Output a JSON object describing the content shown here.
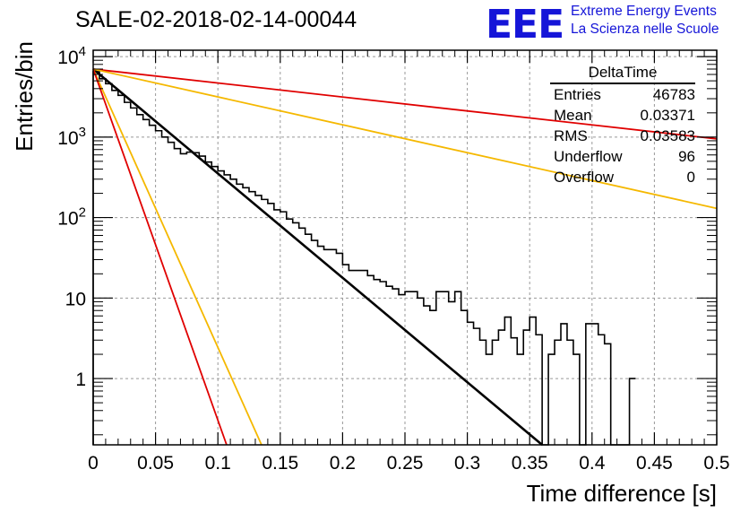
{
  "title": "SALE-02-2018-02-14-00044",
  "logo": {
    "mark": "EEE",
    "line1": "Extreme Energy Events",
    "line2": "La Scienza nelle Scuole",
    "color": "#1515d8"
  },
  "stats": {
    "name": "DeltaTime",
    "rows": [
      {
        "label": "Entries",
        "value": "46783"
      },
      {
        "label": "Mean",
        "value": "0.03371"
      },
      {
        "label": "RMS",
        "value": "0.03583"
      },
      {
        "label": "Underflow",
        "value": "96"
      },
      {
        "label": "Overflow",
        "value": "0"
      }
    ]
  },
  "chart_data": {
    "type": "line",
    "title": "SALE-02-2018-02-14-00044",
    "xlabel": "Time difference [s]",
    "ylabel": "Entries/bin",
    "xlim": [
      0,
      0.5
    ],
    "ylim": [
      0.15,
      12000
    ],
    "yscale": "log",
    "grid": true,
    "xticks": [
      "0",
      "0.05",
      "0.1",
      "0.15",
      "0.2",
      "0.25",
      "0.3",
      "0.35",
      "0.4",
      "0.45",
      "0.5"
    ],
    "yticks": [
      "1",
      "10",
      "10^2",
      "10^3",
      "10^4"
    ],
    "histogram": {
      "bin_width": 0.005,
      "color": "#000000",
      "counts": [
        6500,
        5300,
        4600,
        3800,
        3300,
        2700,
        2300,
        1900,
        1650,
        1400,
        1200,
        1000,
        860,
        720,
        620,
        650,
        640,
        580,
        490,
        430,
        380,
        340,
        300,
        260,
        235,
        210,
        188,
        168,
        150,
        125,
        118,
        96,
        86,
        74,
        62,
        52,
        44,
        40,
        40,
        36,
        26,
        22,
        22,
        22,
        19,
        17,
        16,
        14,
        13,
        11,
        12,
        12,
        10,
        8,
        7,
        12,
        12,
        9,
        12,
        7,
        5,
        4.2,
        3,
        2,
        3,
        4,
        5.8,
        3.2,
        2,
        4,
        5.8,
        3.5,
        0,
        2,
        3,
        4.8,
        3,
        2,
        0,
        4.8,
        4.8,
        3.5,
        2.7,
        0,
        0,
        0,
        1,
        0,
        0,
        1,
        1,
        0,
        1,
        0,
        0,
        1,
        0,
        1,
        0,
        0
      ],
      "draw_until": 0.435
    },
    "fit_lines": [
      {
        "color": "#000000",
        "x": [
          0,
          0.36
        ],
        "y": [
          7000,
          0.15
        ]
      },
      {
        "color": "#e00000",
        "x": [
          0,
          0.5
        ],
        "y": [
          7000,
          950
        ]
      },
      {
        "color": "#f5b800",
        "x": [
          0,
          0.5
        ],
        "y": [
          7000,
          130
        ]
      },
      {
        "color": "#f5b800",
        "x": [
          0,
          0.135
        ],
        "y": [
          7000,
          0.15
        ]
      },
      {
        "color": "#e00000",
        "x": [
          0,
          0.107
        ],
        "y": [
          7000,
          0.15
        ]
      }
    ]
  }
}
